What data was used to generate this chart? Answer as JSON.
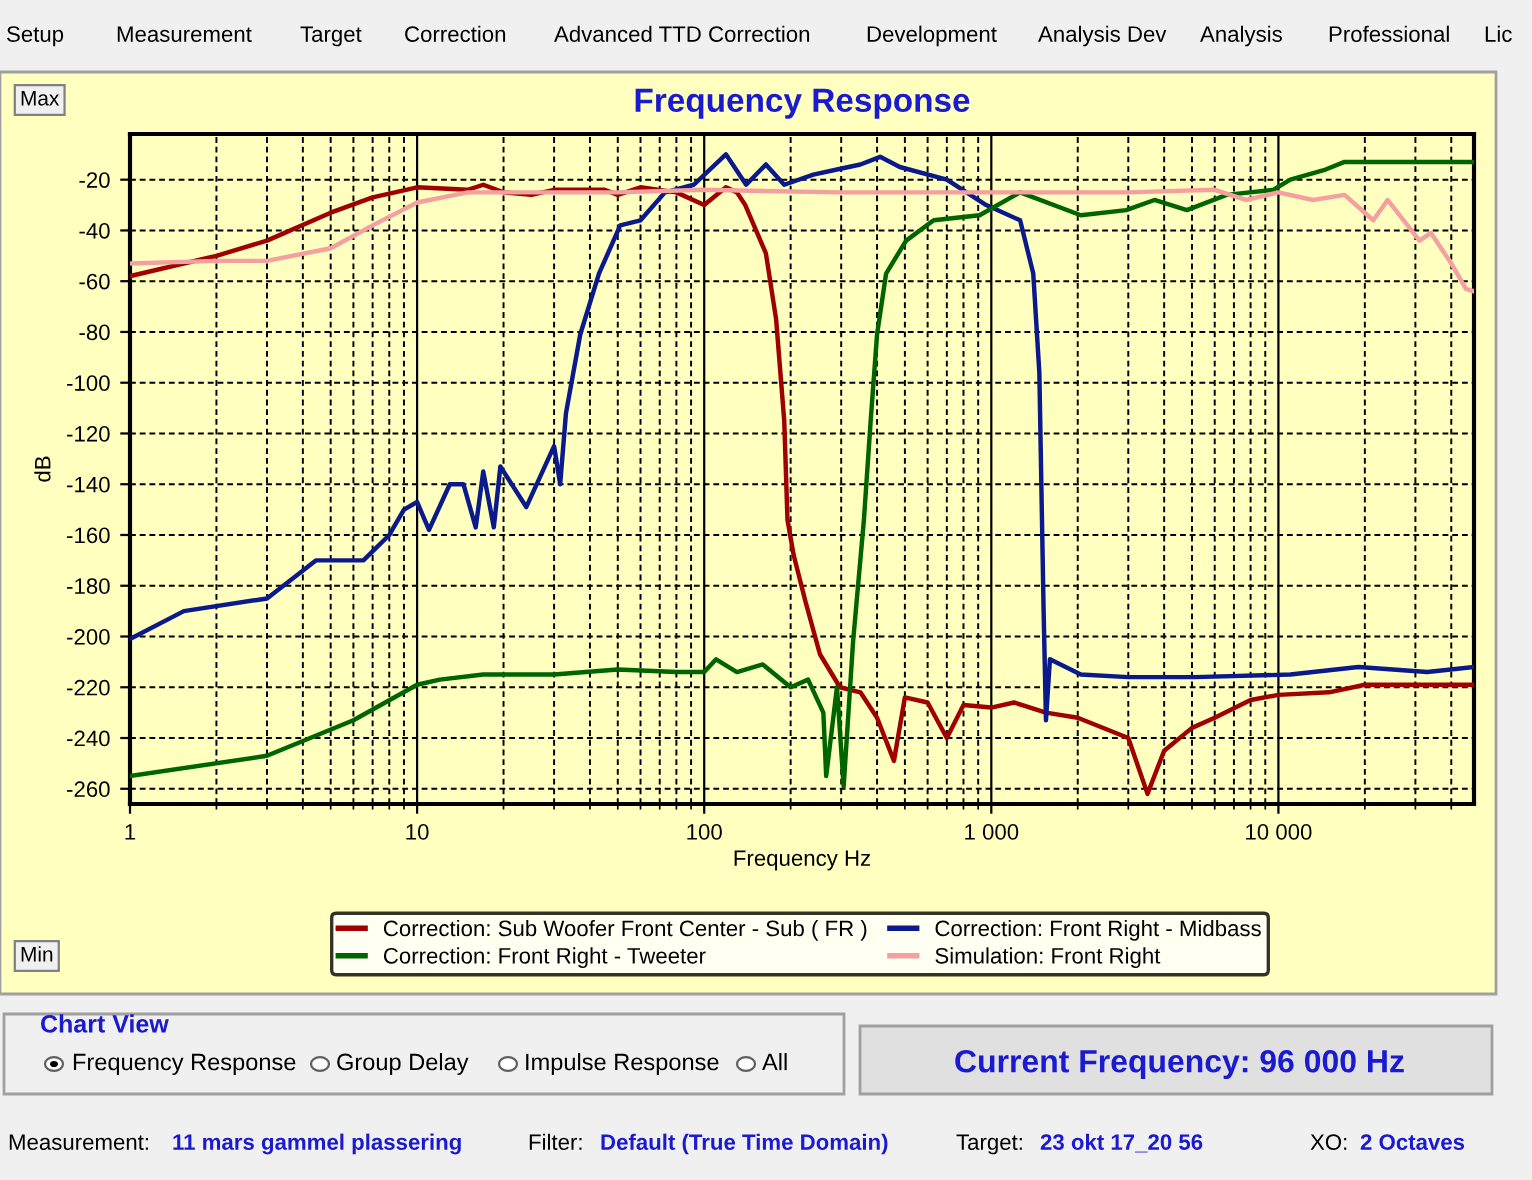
{
  "chart_data": {
    "type": "line",
    "title": "Frequency Response",
    "xlabel": "Frequency Hz",
    "ylabel": "dB",
    "log": "x",
    "xlim": [
      1,
      48000
    ],
    "ylim": [
      -266,
      -2
    ],
    "xticks": [
      1,
      10,
      100,
      {
        "value": 1000,
        "label": "1 000"
      },
      {
        "value": 10000,
        "label": "10 000"
      }
    ],
    "yticks": [
      -20,
      -40,
      -60,
      -80,
      -100,
      -120,
      -140,
      -160,
      -180,
      -200,
      -220,
      -240,
      -260
    ],
    "grid": true,
    "legend": "bottom",
    "marker": "none",
    "line_style": "solid",
    "series": [
      {
        "name": "Correction: Sub Woofer Front Center - Sub ( FR )",
        "color": "#a00000",
        "x": [
          1,
          2,
          3,
          5,
          7,
          10,
          15,
          17,
          20,
          25,
          30,
          45,
          50,
          60,
          80,
          100,
          119,
          130,
          139,
          164,
          178,
          190,
          195,
          205,
          225,
          253,
          297,
          350,
          400,
          458,
          500,
          600,
          700,
          800,
          1000,
          1200,
          1550,
          2000,
          3000,
          3500,
          4000,
          5000,
          6000,
          8000,
          10000,
          15000,
          20000,
          48000
        ],
        "values": [
          -58,
          -50,
          -44,
          -33,
          -27,
          -23,
          -24,
          -22,
          -25,
          -26,
          -24,
          -24,
          -26,
          -23,
          -25,
          -30,
          -23,
          -25,
          -30,
          -49,
          -75,
          -115,
          -154,
          -168,
          -186,
          -207,
          -220,
          -222,
          -232,
          -249,
          -224,
          -226,
          -240,
          -227,
          -228,
          -226,
          -230,
          -232,
          -240,
          -262,
          -245,
          -236,
          -232,
          -225,
          -223,
          -222,
          -219,
          -219
        ]
      },
      {
        "name": "Correction: Front Right - Midbass",
        "color": "#0a1a8c",
        "x": [
          1,
          1.54,
          3,
          4.45,
          6.5,
          8,
          9,
          10,
          11,
          13,
          14.5,
          16,
          17,
          18.5,
          19.5,
          24,
          30,
          31.5,
          33,
          37,
          43,
          51,
          60,
          73,
          92,
          119,
          140,
          164,
          190,
          240,
          290,
          350,
          410,
          480,
          700,
          960,
          1260,
          1400,
          1470,
          1520,
          1550,
          1600,
          2050,
          3000,
          5100,
          11000,
          19000,
          33000,
          48000
        ],
        "values": [
          -201,
          -190,
          -185,
          -170,
          -170,
          -160,
          -150,
          -147,
          -158,
          -140,
          -140,
          -157,
          -135,
          -157,
          -133,
          -149,
          -125,
          -140,
          -112,
          -81,
          -57,
          -38,
          -36,
          -25,
          -22,
          -10,
          -22,
          -14,
          -22,
          -18,
          -16,
          -14,
          -11,
          -15,
          -20,
          -30,
          -36,
          -57,
          -96,
          -188,
          -233,
          -209,
          -215,
          -216,
          -216,
          -215,
          -212,
          -214,
          -212
        ]
      },
      {
        "name": "Correction: Front Right - Tweeter",
        "color": "#006400",
        "x": [
          1,
          3,
          6,
          10,
          12,
          17,
          20,
          30,
          50,
          80,
          100,
          110,
          130,
          160,
          200,
          230,
          260,
          266,
          290,
          306,
          330,
          360,
          380,
          400,
          430,
          505,
          630,
          910,
          1260,
          2050,
          2950,
          3700,
          4800,
          6600,
          9600,
          11000,
          14600,
          17000,
          48000
        ],
        "values": [
          -255,
          -247,
          -233,
          -219,
          -217,
          -215,
          -215,
          -215,
          -213,
          -214,
          -214,
          -209,
          -214,
          -211,
          -220,
          -217,
          -230,
          -255,
          -220,
          -259,
          -202,
          -154,
          -115,
          -81,
          -57,
          -44,
          -36,
          -34,
          -25,
          -34,
          -32,
          -28,
          -32,
          -26,
          -24,
          -20,
          -16,
          -13,
          -13
        ]
      },
      {
        "name": "Simulation: Front Right",
        "color": "#f4a0a0",
        "x": [
          1,
          2,
          3,
          5,
          7,
          10,
          15,
          20,
          50,
          100,
          300,
          1000,
          3000,
          6000,
          7700,
          10000,
          13200,
          17000,
          21400,
          24000,
          31000,
          34000,
          40000,
          45000,
          48000
        ],
        "values": [
          -53,
          -52,
          -52,
          -47,
          -38,
          -29,
          -25,
          -25,
          -25,
          -24,
          -25,
          -25,
          -25,
          -24,
          -28,
          -25,
          -28,
          -26,
          -36,
          -28,
          -44,
          -41,
          -53,
          -63,
          -64
        ]
      }
    ],
    "annotations": [
      "Setup",
      "Measurement",
      "Target",
      "Correction",
      "Advanced TTD Correction",
      "Development",
      "Analysis Dev",
      "Analysis",
      "Professional",
      "Lic",
      "Max",
      "Min",
      "Chart View",
      "Frequency Response",
      "Group Delay",
      "Impulse Response",
      "All",
      "Current Frequency: 96 000 Hz",
      "Measurement:",
      "11 mars gammel plassering",
      "Filter:",
      "Default (True Time Domain)",
      "Target:",
      "23 okt 17_20 56",
      "XO:",
      "2 Octaves"
    ]
  }
}
